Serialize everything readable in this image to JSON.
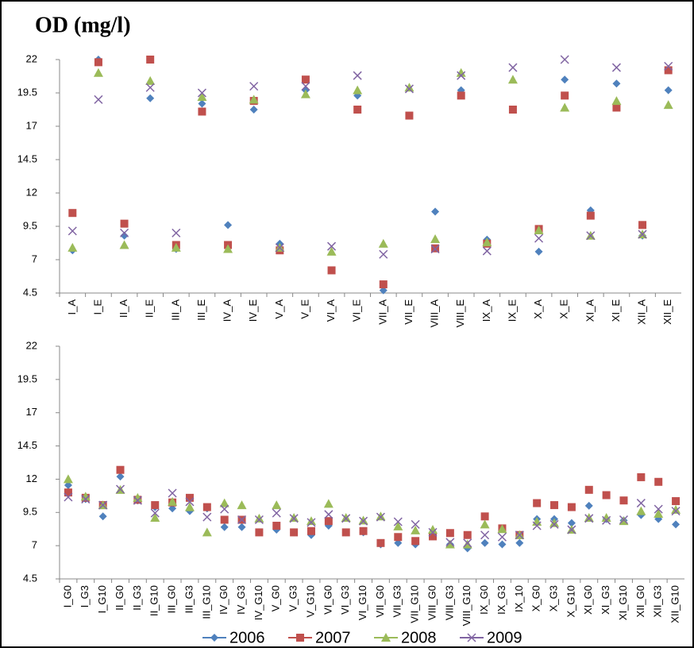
{
  "chart_data": [
    {
      "type": "scatter",
      "title": "OD (mg/l)",
      "categories": [
        "I_A",
        "I_E",
        "II_A",
        "II_E",
        "III_A",
        "III_E",
        "IV_A",
        "IV_E",
        "V_A",
        "V_E",
        "VI_A",
        "VI_E",
        "VII_A",
        "VII_E",
        "VIII_A",
        "VIII_E",
        "IX_A",
        "IX_E",
        "X_A",
        "X_E",
        "XI_A",
        "XI_E",
        "XII_A",
        "XII_E"
      ],
      "ylim": [
        4.5,
        22
      ],
      "yticks": [
        4.5,
        7,
        9.5,
        12,
        14.5,
        17,
        19.5,
        22
      ],
      "grid": false,
      "series": [
        {
          "name": "2006",
          "color": "#4f81bd",
          "marker": "diamond",
          "values": [
            7.7,
            22,
            8.8,
            19.1,
            7.8,
            18.7,
            9.6,
            18.25,
            8.2,
            19.7,
            null,
            19.3,
            4.7,
            null,
            10.6,
            19.7,
            8.5,
            null,
            7.6,
            20.5,
            10.7,
            20.2,
            8.8,
            19.7
          ]
        },
        {
          "name": "2007",
          "color": "#c0504d",
          "marker": "square",
          "values": [
            10.5,
            21.8,
            9.7,
            22,
            8.1,
            18.1,
            8.1,
            18.9,
            7.7,
            20.5,
            6.2,
            18.25,
            5.15,
            17.8,
            7.85,
            19.3,
            8.2,
            18.25,
            9.3,
            19.3,
            10.3,
            18.4,
            9.6,
            21.2
          ]
        },
        {
          "name": "2008",
          "color": "#9bbb59",
          "marker": "triangle",
          "values": [
            7.9,
            21.0,
            8.1,
            20.4,
            7.9,
            19.2,
            7.8,
            19.0,
            7.9,
            19.4,
            7.6,
            19.7,
            8.2,
            19.9,
            8.55,
            21.0,
            8.3,
            20.5,
            9.2,
            18.4,
            8.8,
            18.9,
            8.9,
            18.6
          ]
        },
        {
          "name": "2009",
          "color": "#8064a2",
          "marker": "x",
          "values": [
            9.15,
            19.0,
            9.0,
            19.9,
            9.0,
            19.5,
            null,
            20.0,
            7.9,
            20.0,
            8.0,
            20.8,
            7.4,
            19.8,
            7.8,
            20.8,
            7.65,
            21.4,
            8.6,
            22,
            8.8,
            21.4,
            8.9,
            21.5
          ]
        }
      ]
    },
    {
      "type": "scatter",
      "categories": [
        "I_G0",
        "I_G3",
        "I_G10",
        "II_G0",
        "II_G3",
        "II_G10",
        "III_G0",
        "III_G3",
        "III_G10",
        "IV_G0",
        "IV_G3",
        "IV_G10",
        "V_G0",
        "V_G3",
        "V_G10",
        "VI_G0",
        "VI_G3",
        "VI_G10",
        "VII_G0",
        "VII_G3",
        "VII_G10",
        "VIII_G0",
        "VIII_G3",
        "VIII_G10",
        "IX_G0",
        "IX_G3",
        "IX_10",
        "X_G0",
        "X_G3",
        "X_G10",
        "XI_G0",
        "XI_G3",
        "XI_G10",
        "XII_G0",
        "XII_G3",
        "XII_G10"
      ],
      "ylim": [
        4.5,
        22
      ],
      "yticks": [
        4.5,
        7,
        9.5,
        12,
        14.5,
        17,
        19.5,
        22
      ],
      "grid": false,
      "series": [
        {
          "color": "#4f81bd",
          "marker": "diamond",
          "values": [
            11.55,
            10.5,
            9.2,
            12.2,
            10.4,
            9.9,
            9.8,
            9.6,
            9.8,
            8.4,
            8.4,
            8.0,
            8.2,
            8.0,
            7.8,
            8.5,
            8.0,
            8.0,
            7.1,
            7.2,
            7.1,
            7.7,
            7.1,
            6.8,
            7.2,
            7.1,
            7.2,
            9.0,
            9.0,
            8.7,
            10.0,
            9.0,
            8.9,
            9.3,
            9.0,
            8.6
          ]
        },
        {
          "color": "#c0504d",
          "marker": "square",
          "values": [
            11.0,
            10.6,
            10.05,
            12.7,
            10.45,
            10.05,
            10.25,
            10.6,
            9.9,
            8.95,
            8.95,
            8.0,
            8.5,
            8.0,
            8.1,
            8.85,
            8.0,
            8.1,
            7.2,
            7.65,
            7.35,
            7.7,
            7.95,
            7.8,
            9.2,
            8.3,
            7.8,
            10.2,
            10.05,
            9.9,
            11.2,
            10.8,
            10.4,
            12.15,
            11.8,
            10.35
          ]
        },
        {
          "color": "#9bbb59",
          "marker": "triangle",
          "values": [
            12.0,
            10.7,
            10.05,
            11.2,
            10.6,
            9.1,
            10.3,
            9.9,
            8.0,
            10.2,
            10.05,
            9.05,
            10.05,
            9.1,
            8.85,
            10.15,
            9.1,
            8.9,
            9.2,
            8.45,
            8.15,
            8.2,
            7.1,
            7.1,
            8.6,
            8.25,
            7.8,
            8.8,
            8.7,
            8.2,
            9.1,
            9.1,
            8.85,
            9.6,
            9.4,
            9.7
          ]
        },
        {
          "color": "#8064a2",
          "marker": "x",
          "values": [
            10.65,
            10.5,
            10.05,
            11.25,
            10.4,
            9.45,
            10.95,
            10.3,
            9.15,
            9.75,
            8.95,
            8.95,
            9.45,
            9.05,
            8.75,
            9.35,
            9.05,
            8.85,
            9.15,
            8.8,
            8.6,
            8.0,
            7.25,
            7.2,
            7.8,
            7.65,
            7.8,
            8.5,
            8.6,
            8.2,
            9.05,
            8.9,
            8.95,
            10.2,
            9.75,
            9.6
          ]
        }
      ]
    }
  ]
}
